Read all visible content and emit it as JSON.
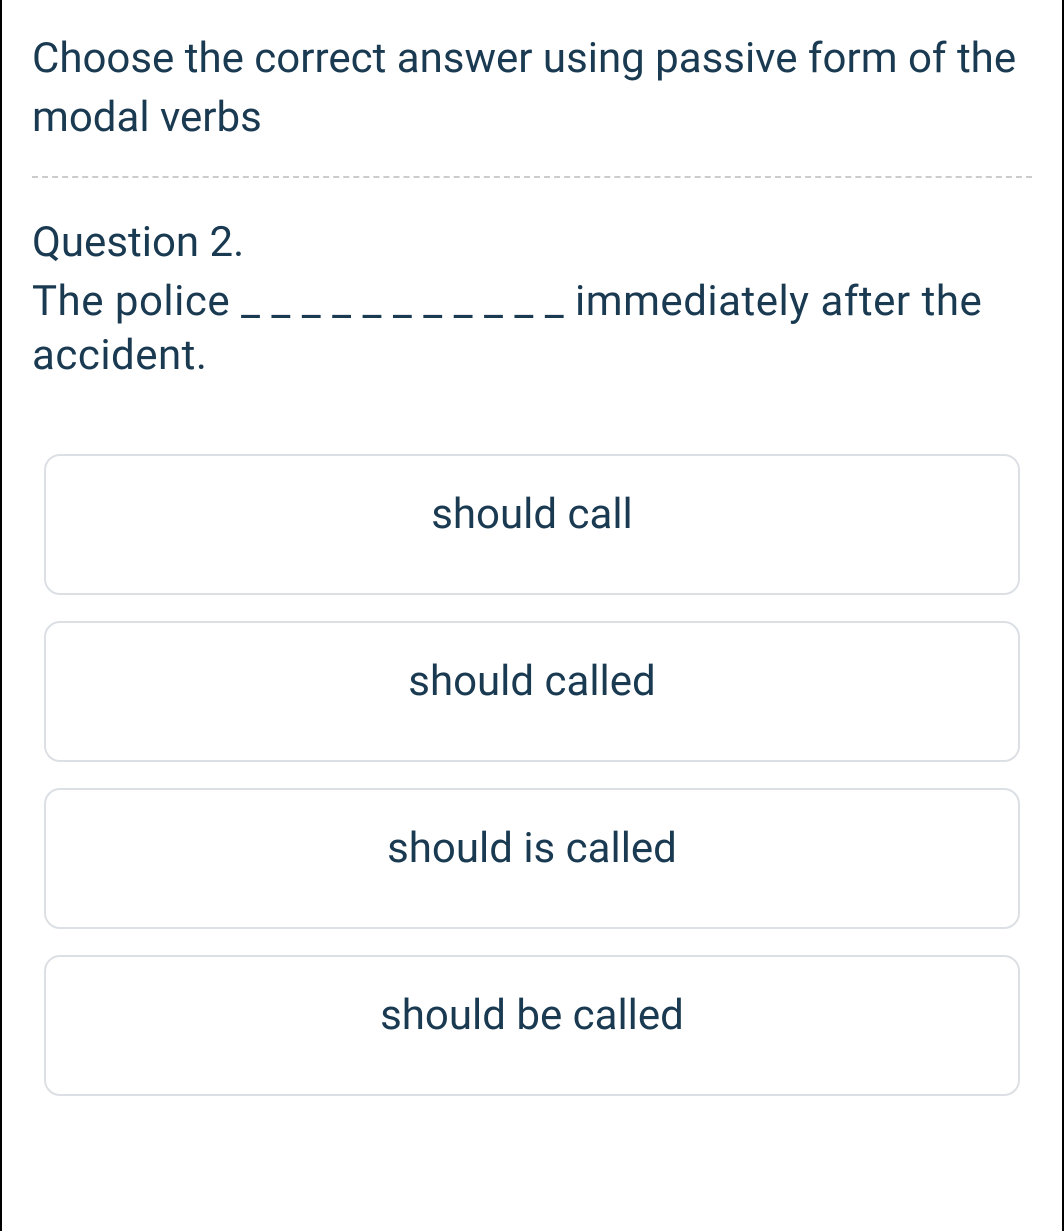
{
  "instruction": "Choose the correct answer using passive form of the modal verbs",
  "question": {
    "number": "Question 2.",
    "text": "The police _ _ _ _ _ _ _ _ _ _ _ immediately after the accident."
  },
  "options": [
    {
      "label": "should call"
    },
    {
      "label": "should called"
    },
    {
      "label": "should is called"
    },
    {
      "label": "should be called"
    }
  ],
  "colors": {
    "text": "#1a3a52",
    "border": "#dce0e4",
    "divider": "#cccccc",
    "background": "#ffffff",
    "container_border": "#000000"
  },
  "typography": {
    "base_fontsize": 42,
    "font_family": "-apple-system, BlinkMacSystemFont, 'Segoe UI', Roboto"
  }
}
